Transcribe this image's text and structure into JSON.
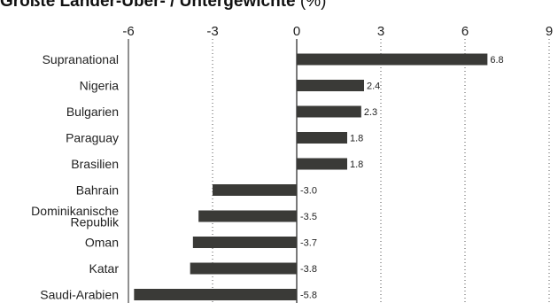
{
  "title": {
    "bold": "Größte Länder-Über- / Untergewichte",
    "rest": " (%)"
  },
  "chart_data": {
    "type": "bar",
    "orientation": "horizontal",
    "title": "Größte Länder-Über- / Untergewichte (%)",
    "categories": [
      "Supranational",
      "Nigeria",
      "Bulgarien",
      "Paraguay",
      "Brasilien",
      "Bahrain",
      "Dominikanische Republik",
      "Oman",
      "Katar",
      "Saudi-Arabien"
    ],
    "category_label_lines": [
      [
        "Supranational"
      ],
      [
        "Nigeria"
      ],
      [
        "Bulgarien"
      ],
      [
        "Paraguay"
      ],
      [
        "Brasilien"
      ],
      [
        "Bahrain"
      ],
      [
        "Dominikanische",
        "Republik"
      ],
      [
        "Oman"
      ],
      [
        "Katar"
      ],
      [
        "Saudi-Arabien"
      ]
    ],
    "values": [
      6.8,
      2.4,
      2.3,
      1.8,
      1.8,
      -3.0,
      -3.5,
      -3.7,
      -3.8,
      -5.8
    ],
    "value_labels": [
      "6.8",
      "2.4",
      "2.3",
      "1.8",
      "1.8",
      "-3.0",
      "-3.5",
      "-3.7",
      "-3.8",
      "-5.8"
    ],
    "xlim": [
      -6,
      9
    ],
    "xticks": [
      -6,
      -3,
      0,
      3,
      6,
      9
    ],
    "xtick_labels": [
      "-6",
      "-3",
      "0",
      "3",
      "6",
      "9"
    ],
    "xaxis_position": "top",
    "grid": "vertical dotted",
    "bar_color": "#3a3a37"
  }
}
